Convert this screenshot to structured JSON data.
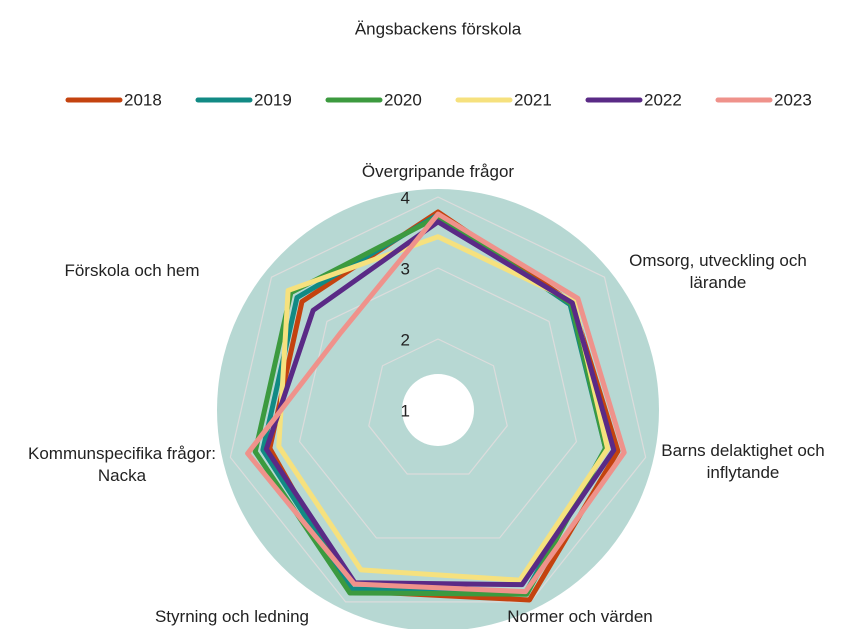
{
  "chart_data": {
    "type": "radar",
    "title": "Ängsbackens förskola",
    "categories": [
      "Övergripande frågor",
      "Omsorg, utveckling och lärande",
      "Barns delaktighet och inflytande",
      "Normer och värden",
      "Styrning och ledning",
      "Förskola och hem",
      "Kommunspecifika frågor: Nacka"
    ],
    "series": [
      {
        "name": "2018",
        "color": "#c4430f",
        "values": [
          3.79,
          3.42,
          3.6,
          3.97,
          3.83,
          3.43,
          3.45
        ]
      },
      {
        "name": "2019",
        "color": "#118a84",
        "values": [
          3.75,
          3.38,
          3.42,
          3.85,
          3.8,
          3.53,
          3.54
        ]
      },
      {
        "name": "2020",
        "color": "#3c9a3f",
        "values": [
          3.72,
          3.4,
          3.42,
          3.88,
          3.86,
          3.64,
          3.65
        ]
      },
      {
        "name": "2021",
        "color": "#f6e17e",
        "values": [
          3.44,
          3.45,
          3.45,
          3.66,
          3.5,
          3.3,
          3.7
        ]
      },
      {
        "name": "2022",
        "color": "#5a2a86",
        "values": [
          3.65,
          3.42,
          3.54,
          3.73,
          3.7,
          3.48,
          3.25
        ]
      },
      {
        "name": "2023",
        "color": "#ef928b",
        "values": [
          3.76,
          3.52,
          3.69,
          3.84,
          3.72,
          3.75,
          2.75
        ]
      }
    ],
    "ylim": [
      1,
      4
    ],
    "yticks": [
      1,
      2,
      3,
      4
    ],
    "grid": true,
    "legend": "top"
  }
}
